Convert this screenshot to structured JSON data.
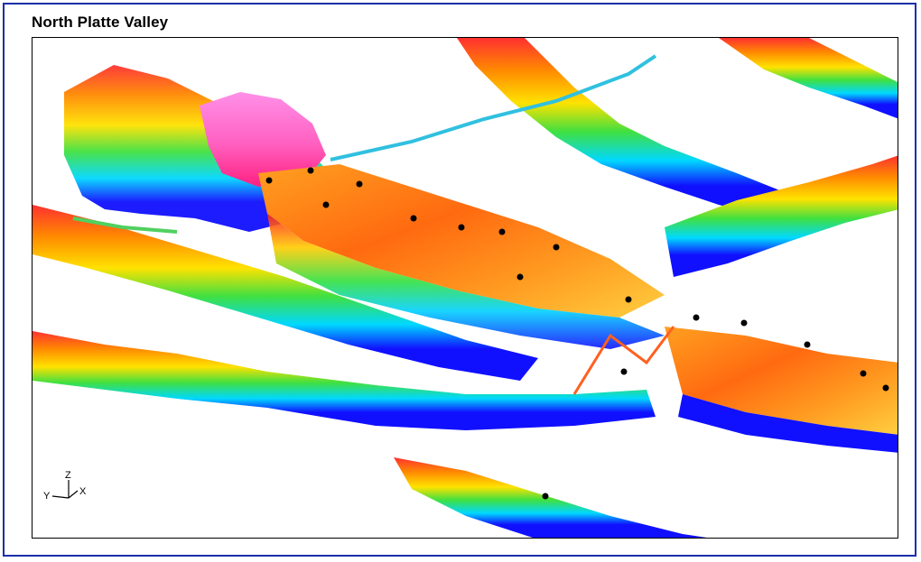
{
  "title": "North Platte Valley",
  "axes_triad": {
    "z_label": "Z",
    "x_label": "X",
    "y_label": "Y"
  },
  "palette": {
    "frame_border": "#1c2fa8",
    "low": "#1010ff",
    "cyan": "#00e0ff",
    "green": "#30e040",
    "yellow": "#ffe000",
    "orange": "#ff8000",
    "red": "#ff2020",
    "pink": "#ff80e0"
  }
}
